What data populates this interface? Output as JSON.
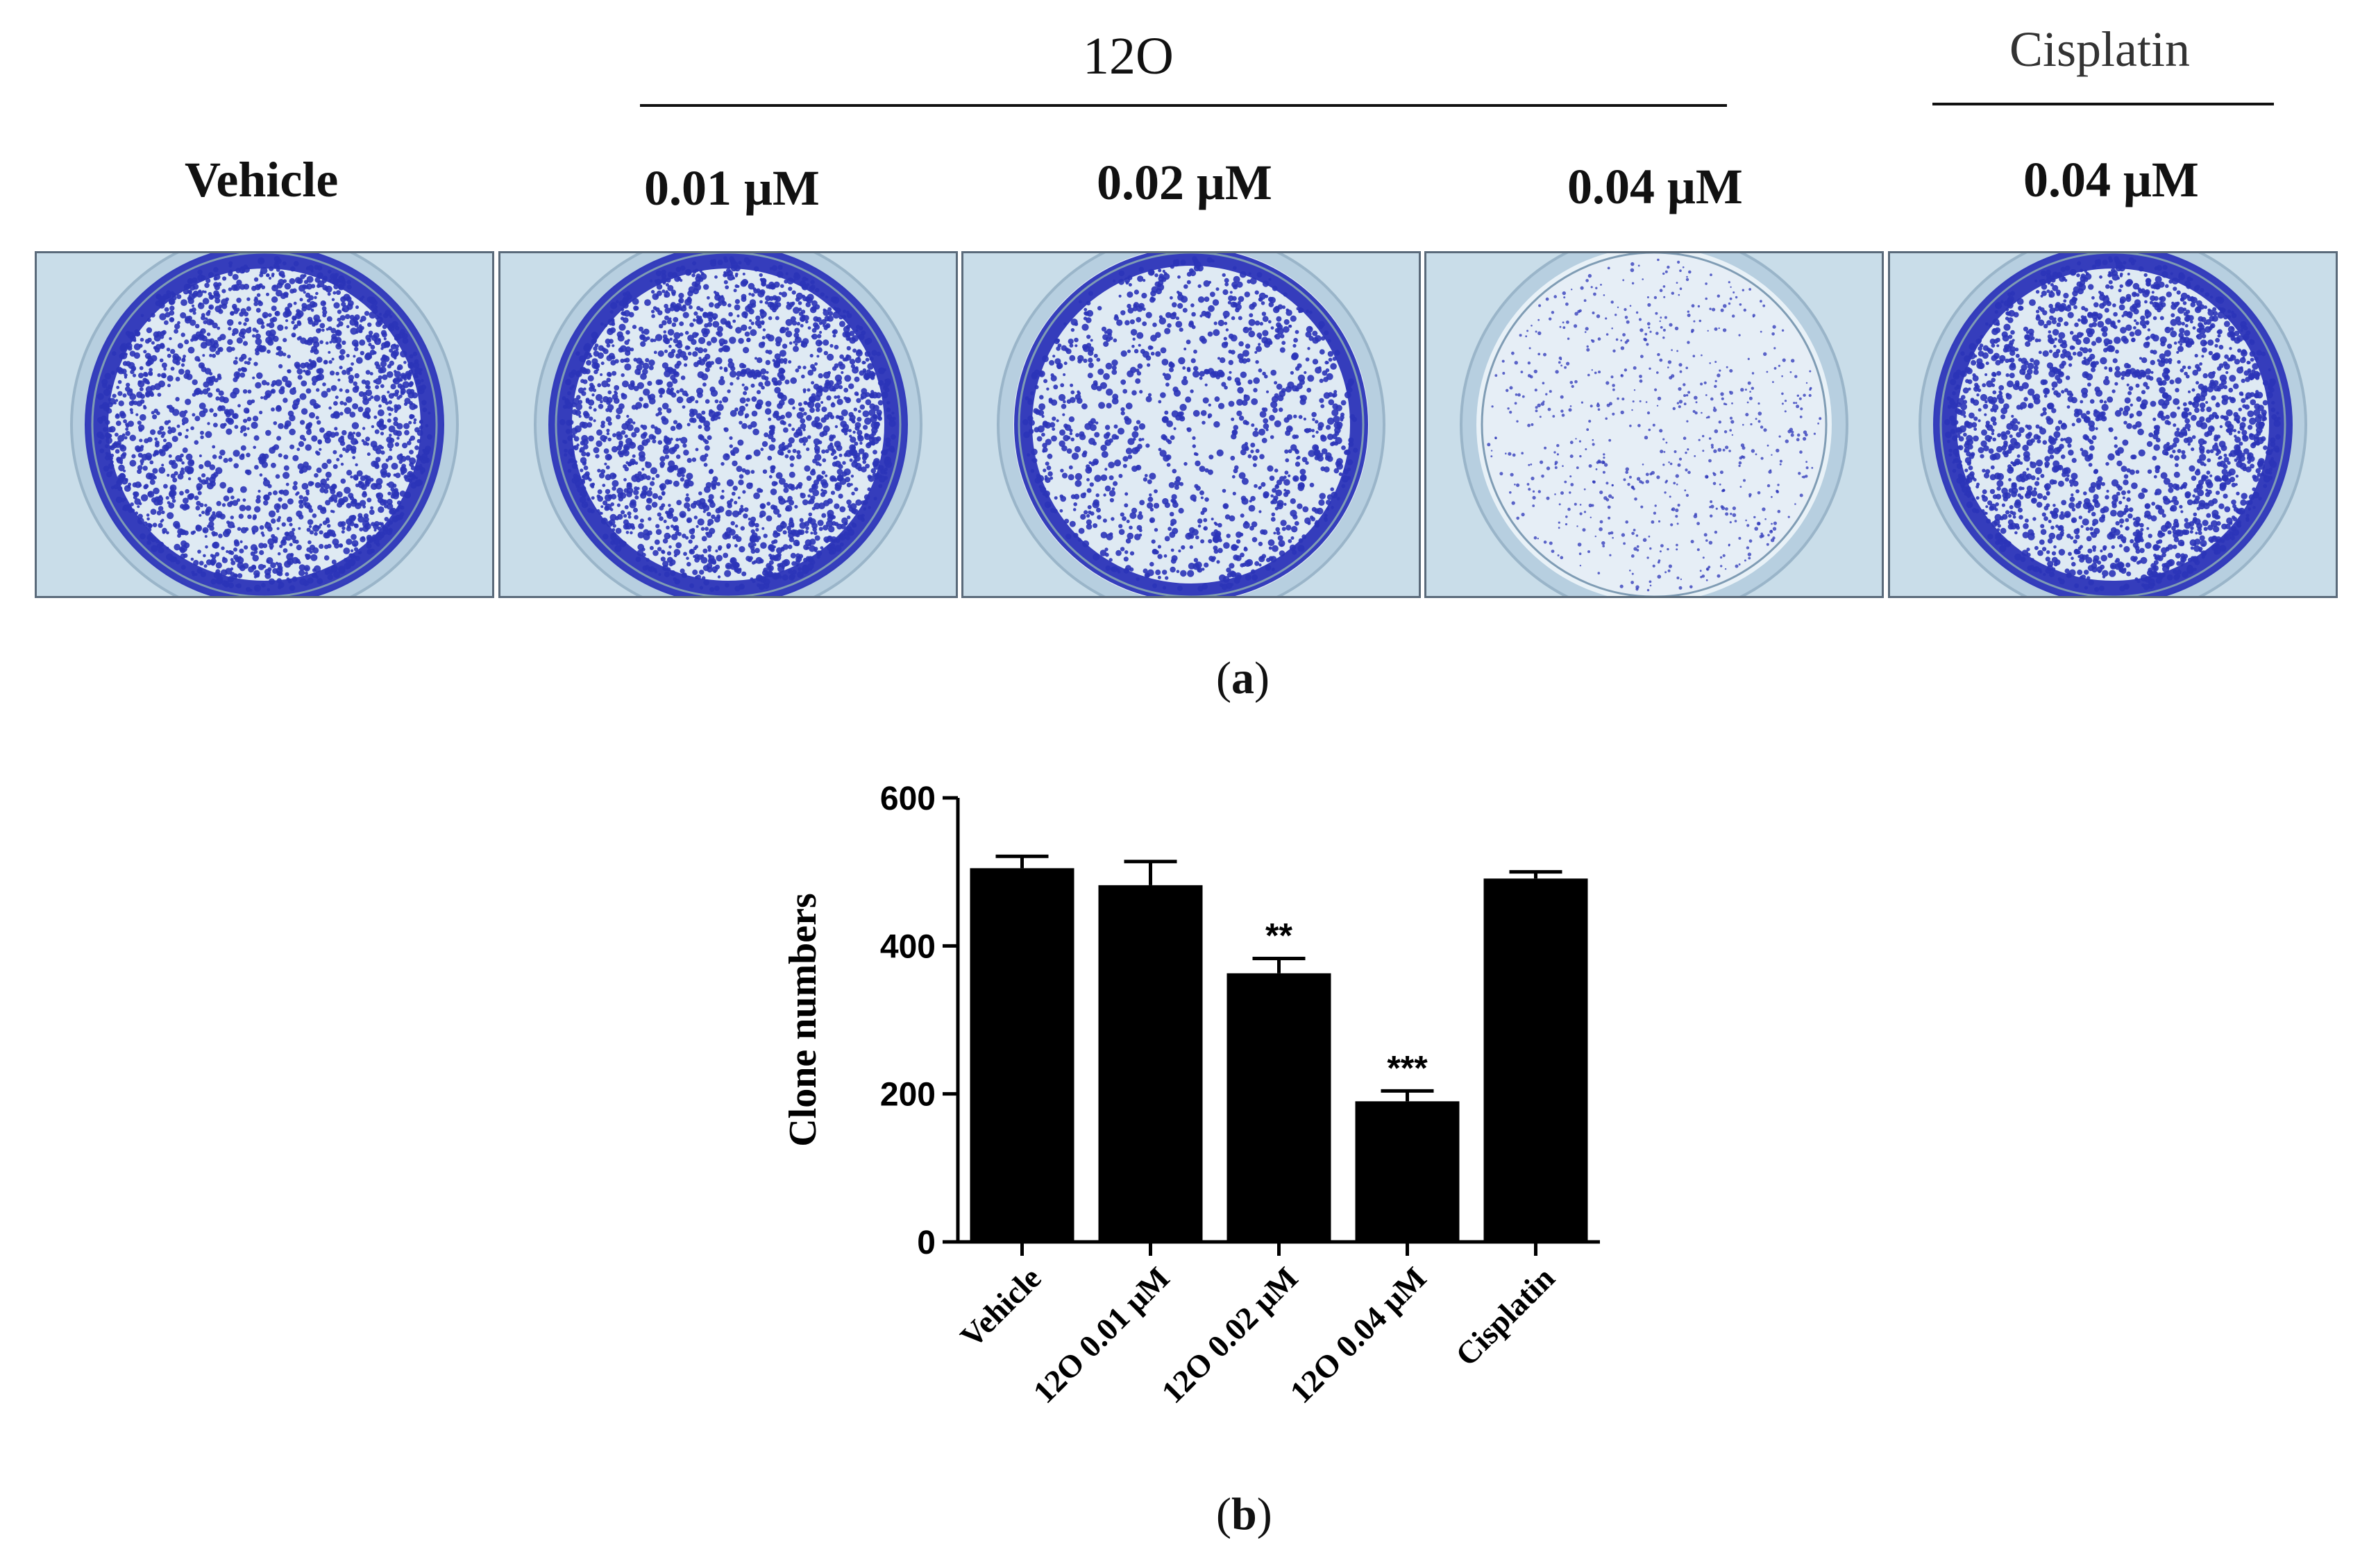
{
  "panel_a": {
    "caption_label": "a",
    "group_12O_label": "12O",
    "group_cisplatin_label": "Cisplatin",
    "columns": [
      {
        "label": "Vehicle",
        "colony_density": "high"
      },
      {
        "label": "0.01 μM",
        "colony_density": "high"
      },
      {
        "label": "0.02 μM",
        "colony_density": "medium"
      },
      {
        "label": "0.04 μM",
        "colony_density": "low"
      },
      {
        "label": "0.04 μM",
        "colony_density": "high"
      }
    ],
    "colors": {
      "stain": "#2b34b8",
      "well_bg": "#dfeaf3",
      "plate": "#c9dde9"
    }
  },
  "panel_b": {
    "caption_label": "b"
  },
  "chart_data": {
    "type": "bar",
    "categories": [
      "Vehicle",
      "12O 0.01 μM",
      "12O 0.02 μM",
      "12O 0.04 μM",
      "Cisplatin"
    ],
    "values": [
      505,
      482,
      363,
      190,
      491
    ],
    "errors": [
      16,
      32,
      20,
      14,
      9
    ],
    "significance": [
      "",
      "",
      "**",
      "***",
      ""
    ],
    "ylabel": "Clone numbers",
    "xlabel": "",
    "ylim": [
      0,
      600
    ],
    "yticks": [
      0,
      200,
      400,
      600
    ],
    "bar_color": "#000000",
    "grid": false
  }
}
